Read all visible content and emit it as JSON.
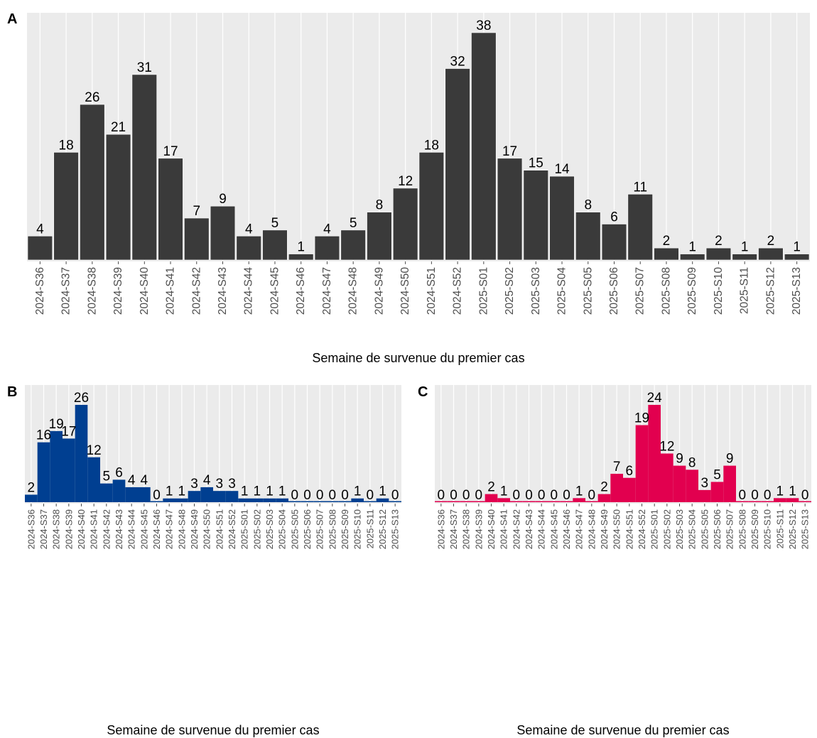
{
  "chart_data": [
    {
      "panel": "A",
      "type": "bar",
      "xlabel": "Semaine de survenue du premier cas",
      "ylabel": "",
      "color": "#3a3a3a",
      "categories": [
        "2024-S36",
        "2024-S37",
        "2024-S38",
        "2024-S39",
        "2024-S40",
        "2024-S41",
        "2024-S42",
        "2024-S43",
        "2024-S44",
        "2024-S45",
        "2024-S46",
        "2024-S47",
        "2024-S48",
        "2024-S49",
        "2024-S50",
        "2024-S51",
        "2024-S52",
        "2025-S01",
        "2025-S02",
        "2025-S03",
        "2025-S04",
        "2025-S05",
        "2025-S06",
        "2025-S07",
        "2025-S08",
        "2025-S09",
        "2025-S10",
        "2025-S11",
        "2025-S12",
        "2025-S13"
      ],
      "values": [
        4,
        18,
        26,
        21,
        31,
        17,
        7,
        9,
        4,
        5,
        1,
        4,
        5,
        8,
        12,
        18,
        32,
        38,
        17,
        15,
        14,
        8,
        6,
        11,
        2,
        1,
        2,
        1,
        2,
        1
      ],
      "ylim": [
        0,
        38
      ]
    },
    {
      "panel": "B",
      "type": "area",
      "xlabel": "Semaine de survenue du premier cas",
      "ylabel": "",
      "color": "#003f91",
      "categories": [
        "2024-S36",
        "2024-S37",
        "2024-S38",
        "2024-S39",
        "2024-S40",
        "2024-S41",
        "2024-S42",
        "2024-S43",
        "2024-S44",
        "2024-S45",
        "2024-S46",
        "2024-S47",
        "2024-S48",
        "2024-S49",
        "2024-S50",
        "2024-S51",
        "2024-S52",
        "2025-S01",
        "2025-S02",
        "2025-S03",
        "2025-S04",
        "2025-S05",
        "2025-S06",
        "2025-S07",
        "2025-S08",
        "2025-S09",
        "2025-S10",
        "2025-S11",
        "2025-S12",
        "2025-S13"
      ],
      "values": [
        2,
        16,
        19,
        17,
        26,
        12,
        5,
        6,
        4,
        4,
        0,
        1,
        1,
        3,
        4,
        3,
        3,
        1,
        1,
        1,
        1,
        0,
        0,
        0,
        0,
        0,
        1,
        0,
        1,
        0
      ],
      "ylim": [
        0,
        26
      ]
    },
    {
      "panel": "C",
      "type": "area",
      "xlabel": "Semaine de survenue du premier cas",
      "ylabel": "",
      "color": "#e2004f",
      "categories": [
        "2024-S36",
        "2024-S37",
        "2024-S38",
        "2024-S39",
        "2024-S40",
        "2024-S41",
        "2024-S42",
        "2024-S43",
        "2024-S44",
        "2024-S45",
        "2024-S46",
        "2024-S47",
        "2024-S48",
        "2024-S49",
        "2024-S50",
        "2024-S51",
        "2024-S52",
        "2025-S01",
        "2025-S02",
        "2025-S03",
        "2025-S04",
        "2025-S05",
        "2025-S06",
        "2025-S07",
        "2025-S08",
        "2025-S09",
        "2025-S10",
        "2025-S11",
        "2025-S12",
        "2025-S13"
      ],
      "values": [
        0,
        0,
        0,
        0,
        2,
        1,
        0,
        0,
        0,
        0,
        0,
        1,
        0,
        2,
        7,
        6,
        19,
        24,
        12,
        9,
        8,
        3,
        5,
        9,
        0,
        0,
        0,
        1,
        1,
        0
      ],
      "ylim": [
        0,
        24
      ]
    }
  ]
}
